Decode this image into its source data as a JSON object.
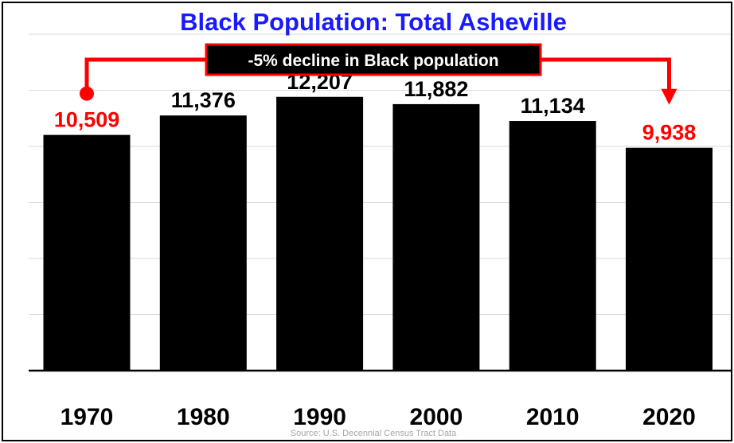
{
  "chart_data": {
    "type": "bar",
    "title": "Black Population: Total Asheville",
    "categories": [
      "1970",
      "1980",
      "1990",
      "2000",
      "2010",
      "2020"
    ],
    "values": [
      10509,
      11376,
      12207,
      11882,
      11134,
      9938
    ],
    "data_labels": [
      "10,509",
      "11,376",
      "12,207",
      "11,882",
      "11,134",
      "9,938"
    ],
    "annotation": "-5% decline in Black population",
    "source": "Source: U.S. Decennial Census Tract Data",
    "ylim": [
      0,
      15000
    ],
    "grid": true,
    "legend": "none"
  },
  "colors": {
    "title": "#1a1aff",
    "bar": "#000000",
    "highlight": "#ff0000",
    "grid": "#d9d9d9",
    "source": "#a6a6a6",
    "annotation_bg": "#000000",
    "annotation_text": "#ffffff"
  }
}
